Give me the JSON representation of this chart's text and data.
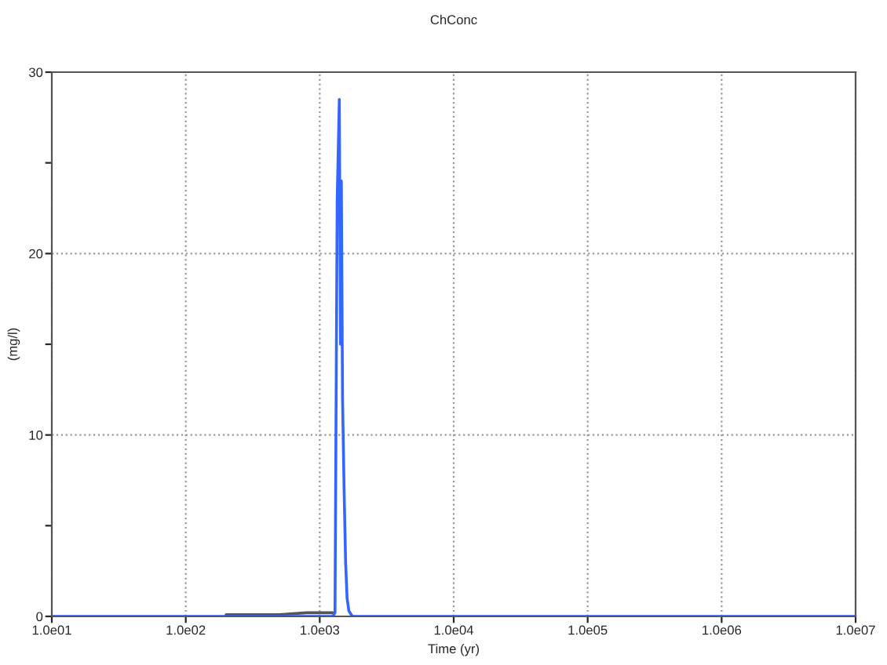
{
  "chart_data": {
    "type": "line",
    "title": "ChConc",
    "xlabel": "Time (yr)",
    "ylabel": "(mg/l)",
    "log": "x",
    "xlim": [
      10,
      10000000
    ],
    "xticks": [
      {
        "value": 10,
        "label": "1.0e01"
      },
      {
        "value": 100,
        "label": "1.0e02"
      },
      {
        "value": 1000,
        "label": "1.0e03"
      },
      {
        "value": 10000,
        "label": "1.0e04"
      },
      {
        "value": 100000,
        "label": "1.0e05"
      },
      {
        "value": 1000000,
        "label": "1.0e06"
      },
      {
        "value": 10000000,
        "label": "1.0e07"
      }
    ],
    "ylim": [
      0,
      30
    ],
    "yticks": [
      0,
      {
        "value": 5,
        "label": null
      },
      10,
      {
        "value": 15,
        "label": null
      },
      20,
      {
        "value": 25,
        "label": null
      },
      30
    ],
    "grid": true,
    "line_style": "solid",
    "marker": "none",
    "series": [
      {
        "color": "#555555",
        "x": [
          200,
          300,
          500,
          800,
          1000,
          1250
        ],
        "values": [
          0.1,
          0.1,
          0.1,
          0.2,
          0.2,
          0.2
        ]
      },
      {
        "color": "#3366ff",
        "x": [
          10,
          100,
          1000,
          1250,
          1300,
          1350,
          1400,
          1430,
          1450,
          1480,
          1520,
          1560,
          1600,
          1650,
          1750,
          10000,
          100000,
          1000000,
          10000000
        ],
        "values": [
          0,
          0,
          0,
          0,
          0.2,
          23,
          28.5,
          15,
          24,
          12,
          7,
          3,
          1,
          0.3,
          0,
          0,
          0,
          0,
          0
        ]
      }
    ]
  }
}
